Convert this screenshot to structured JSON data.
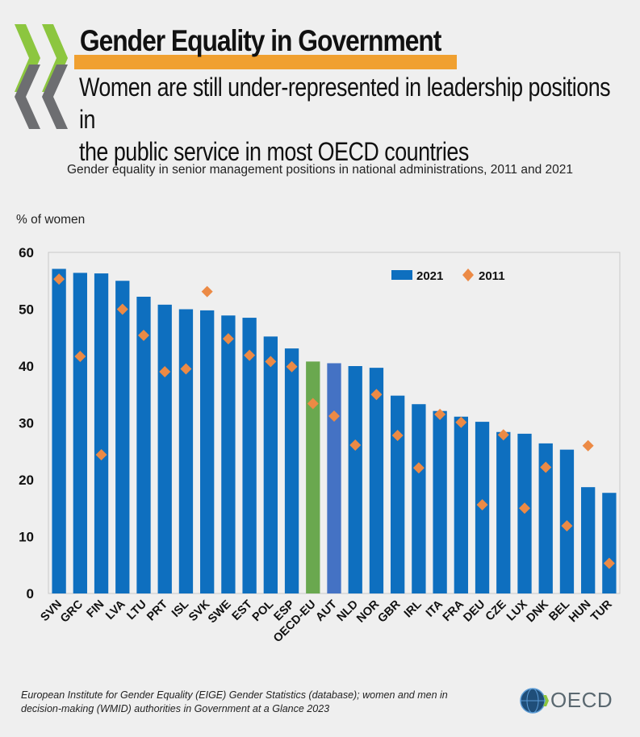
{
  "header": {
    "title": "Gender Equality in Government",
    "subtitle_line1": "Women are still under-represented in leadership positions in",
    "subtitle_line2": "the public service in most OECD countries"
  },
  "footer": {
    "source_line1": "European Institute for Gender Equality (EIGE) Gender Statistics (database); women and men in",
    "source_line2": "decision-making (WMID) authorities in Government at a Glance 2023",
    "logo_text": "OECD"
  },
  "colors": {
    "bar": "#0e6fbf",
    "bar_oecd_eu": "#6aa84f",
    "bar_aut": "#4472c4",
    "marker": "#ec8a45",
    "title_highlight": "#f0a030",
    "chevron_green": "#8cc63f",
    "chevron_grey": "#6d6e71"
  },
  "chart_data": {
    "type": "bar",
    "title": "Gender equality in senior management positions in national administrations, 2011 and 2021",
    "ylabel": "% of women",
    "xlabel": "",
    "ylim": [
      0,
      60
    ],
    "yticks": [
      0,
      10,
      20,
      30,
      40,
      50,
      60
    ],
    "grid": false,
    "legend_position": "top-right",
    "categories": [
      "SVN",
      "GRC",
      "FIN",
      "LVA",
      "LTU",
      "PRT",
      "ISL",
      "SVK",
      "SWE",
      "EST",
      "POL",
      "ESP",
      "OECD-EU",
      "AUT",
      "NLD",
      "NOR",
      "GBR",
      "IRL",
      "ITA",
      "FRA",
      "DEU",
      "CZE",
      "LUX",
      "DNK",
      "BEL",
      "HUN",
      "TUR"
    ],
    "series": [
      {
        "name": "2021",
        "kind": "bar",
        "values": [
          57.1,
          56.4,
          56.3,
          55.0,
          52.2,
          50.8,
          50.0,
          49.8,
          48.9,
          48.5,
          45.2,
          43.1,
          40.8,
          40.5,
          40.0,
          39.7,
          34.8,
          33.3,
          32.1,
          31.1,
          30.2,
          28.4,
          28.1,
          26.4,
          25.3,
          18.7,
          17.7
        ]
      },
      {
        "name": "2011",
        "kind": "marker",
        "values": [
          55.3,
          41.7,
          24.4,
          50.0,
          45.4,
          39.0,
          39.5,
          53.1,
          44.8,
          41.9,
          40.8,
          39.9,
          33.4,
          31.2,
          26.1,
          35.0,
          27.8,
          22.1,
          31.5,
          30.1,
          15.6,
          27.9,
          15.0,
          22.2,
          11.9,
          26.0,
          5.3
        ]
      }
    ]
  }
}
